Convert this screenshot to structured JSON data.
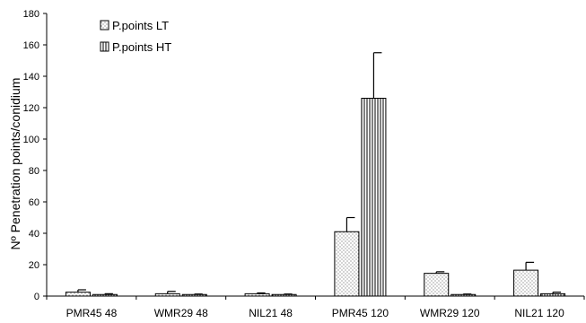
{
  "chart_data": {
    "type": "bar",
    "ylabel": "Nº Penetration points/conidium",
    "ylim": [
      0,
      180
    ],
    "yticks": [
      0,
      20,
      40,
      60,
      80,
      100,
      120,
      140,
      160,
      180
    ],
    "grid": false,
    "legend": "top-left",
    "categories": [
      "PMR45 48",
      "WMR29 48",
      "NIL21 48",
      "PMR45 120",
      "WMR29 120",
      "NIL21 120"
    ],
    "series": [
      {
        "name": "P.points LT",
        "pattern": "dots",
        "values": [
          2.5,
          1.5,
          1.5,
          41,
          14.5,
          16.5
        ],
        "errors": [
          1.5,
          1.5,
          0.5,
          9,
          1,
          5
        ]
      },
      {
        "name": "P.points HT",
        "pattern": "vertical-lines",
        "values": [
          1,
          1,
          1,
          126,
          1,
          1.5
        ],
        "errors": [
          0.5,
          0.3,
          0.3,
          29,
          0.3,
          1
        ]
      }
    ]
  }
}
